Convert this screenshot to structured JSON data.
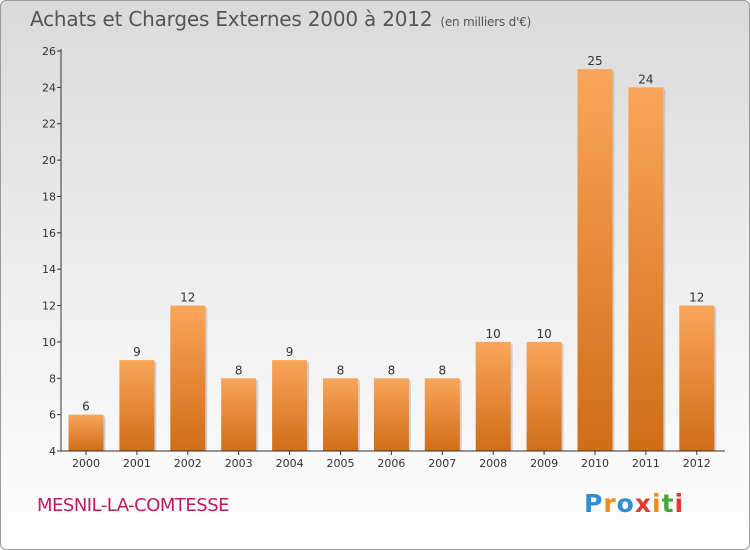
{
  "header": {
    "title": "Achats et Charges Externes 2000 à 2012",
    "subtitle": "(en milliers d'€)"
  },
  "footer": {
    "commune": "MESNIL-LA-COMTESSE",
    "logo_letters": [
      "P",
      "r",
      "o",
      "x",
      "i",
      "t",
      "i"
    ],
    "logo_colors": [
      "#2e8fd6",
      "#f08c1a",
      "#2e8fd6",
      "#e23a2e",
      "#f08c1a",
      "#4aa83b",
      "#e23a2e"
    ]
  },
  "colors": {
    "bar_light": "#f9a65a",
    "bar_dark": "#d06d18",
    "axis": "#333333",
    "text": "#333333"
  },
  "chart_data": {
    "type": "bar",
    "title": "Achats et Charges Externes 2000 à 2012",
    "subtitle": "(en milliers d'€)",
    "xlabel": "",
    "ylabel": "",
    "categories": [
      "2000",
      "2001",
      "2002",
      "2003",
      "2004",
      "2005",
      "2006",
      "2007",
      "2008",
      "2009",
      "2010",
      "2011",
      "2012"
    ],
    "values": [
      6,
      9,
      12,
      8,
      9,
      8,
      8,
      8,
      10,
      10,
      25,
      24,
      12
    ],
    "ylim": [
      4,
      26
    ],
    "yticks": [
      "4",
      "6",
      "8",
      "10",
      "12",
      "14",
      "16",
      "18",
      "20",
      "22",
      "24",
      "26"
    ],
    "grid": false,
    "legend": "none"
  }
}
